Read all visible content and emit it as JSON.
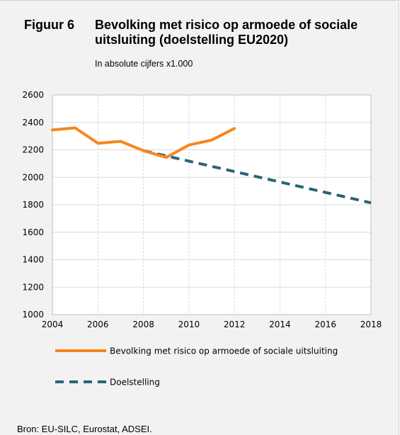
{
  "figure": {
    "label": "Figuur 6",
    "title": "Bevolking met risico op armoede of sociale uitsluiting  (doelstelling EU2020)",
    "subtitle": "In absolute cijfers  x1.000"
  },
  "source": "Bron: EU-SILC, Eurostat, ADSEI.",
  "colors": {
    "series_actual": "#f7861e",
    "series_target": "#2b6375",
    "grid": "#d9d9d9",
    "plot_border": "#bfbfbf"
  },
  "chart_data": {
    "type": "line",
    "title": "Bevolking met risico op armoede of sociale uitsluiting  (doelstelling EU2020)",
    "xlabel": "",
    "ylabel": "",
    "xlim": [
      2004,
      2018
    ],
    "ylim": [
      1000,
      2600
    ],
    "x_ticks": [
      2004,
      2006,
      2008,
      2010,
      2012,
      2014,
      2016,
      2018
    ],
    "y_ticks": [
      1000,
      1200,
      1400,
      1600,
      1800,
      2000,
      2200,
      2400,
      2600
    ],
    "grid": true,
    "legend_position": "bottom",
    "series": [
      {
        "name": "Bevolking met risico op armoede of sociale uitsluiting",
        "style": "solid",
        "points": [
          {
            "x": 2004,
            "y": 2345
          },
          {
            "x": 2005,
            "y": 2360
          },
          {
            "x": 2006,
            "y": 2248
          },
          {
            "x": 2007,
            "y": 2262
          },
          {
            "x": 2008,
            "y": 2194
          },
          {
            "x": 2009,
            "y": 2145
          },
          {
            "x": 2010,
            "y": 2235
          },
          {
            "x": 2011,
            "y": 2271
          },
          {
            "x": 2012,
            "y": 2356
          }
        ]
      },
      {
        "name": "Doelstelling",
        "style": "dashed",
        "points": [
          {
            "x": 2008,
            "y": 2194
          },
          {
            "x": 2018,
            "y": 1814
          }
        ]
      }
    ]
  }
}
